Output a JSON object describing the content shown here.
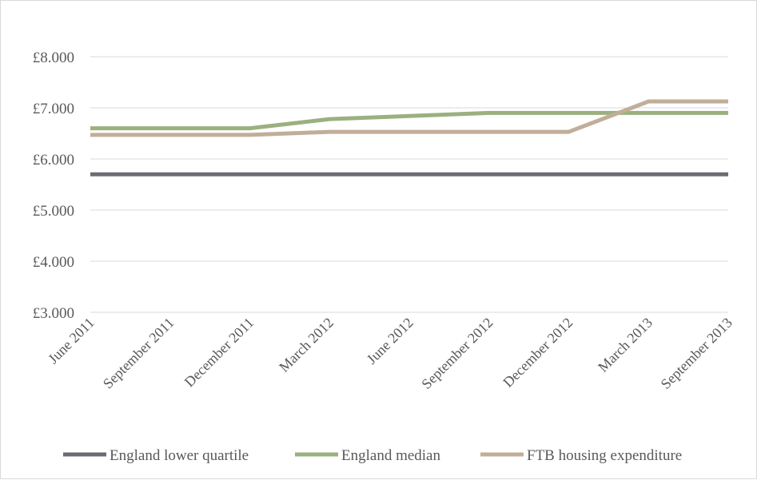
{
  "chart_data": {
    "type": "line",
    "title": "",
    "xlabel": "",
    "ylabel": "",
    "categories": [
      "June 2011",
      "September 2011",
      "December 2011",
      "March 2012",
      "June 2012",
      "September 2012",
      "December 2012",
      "March 2013",
      "September 2013"
    ],
    "y_ticks": [
      "£3.000",
      "£4.000",
      "£5.000",
      "£6.000",
      "£7.000",
      "£8.000"
    ],
    "ylim": [
      3000,
      8000
    ],
    "grid": true,
    "legend_position": "bottom",
    "series": [
      {
        "name": "England lower quartile",
        "color": "#6b6b73",
        "values": [
          5700,
          5700,
          5700,
          5700,
          5700,
          5700,
          5700,
          5700,
          5700
        ]
      },
      {
        "name": "England median",
        "color": "#9bb07f",
        "values": [
          6600,
          6600,
          6600,
          6780,
          6840,
          6900,
          6900,
          6900,
          6900
        ]
      },
      {
        "name": "FTB housing expenditure",
        "color": "#c1ae99",
        "values": [
          6470,
          6470,
          6470,
          6530,
          6530,
          6530,
          6530,
          7125,
          7125
        ]
      }
    ]
  }
}
